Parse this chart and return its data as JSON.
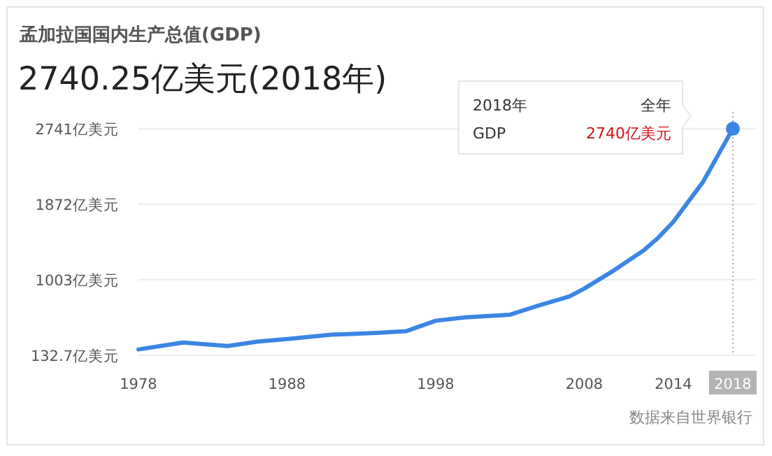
{
  "chart_data": {
    "type": "line",
    "title": "孟加拉国国内生产总值(GDP)",
    "subtitle": "2740.25亿美元(2018年)",
    "x": [
      1978,
      1981,
      1984,
      1986,
      1988,
      1991,
      1994,
      1996,
      1998,
      2000,
      2003,
      2005,
      2007,
      2008,
      2010,
      2012,
      2013,
      2014,
      2016,
      2018
    ],
    "series": [
      {
        "color": "#3b86e4",
        "values": [
          200,
          280,
          240,
          290,
          320,
          370,
          390,
          410,
          530,
          570,
          600,
          710,
          810,
          900,
          1110,
          1340,
          1490,
          1670,
          2130,
          2740
        ]
      }
    ],
    "xlim": [
      1978,
      2018
    ],
    "xticks": [
      1978,
      1988,
      1998,
      2008,
      2014,
      2018
    ],
    "ylim": [
      132.7,
      2741
    ],
    "yticks": [
      {
        "value": 132.7,
        "label": "132.7亿美元"
      },
      {
        "value": 1003,
        "label": "1003亿美元"
      },
      {
        "value": 1872,
        "label": "1872亿美元"
      },
      {
        "value": 2741,
        "label": "2741亿美元"
      }
    ],
    "grid": "y",
    "marker": "none",
    "line_style": "solid",
    "annotations": [
      "2018年",
      "全年",
      "GDP",
      "2740亿美元",
      "数据来自世界银行"
    ]
  }
}
